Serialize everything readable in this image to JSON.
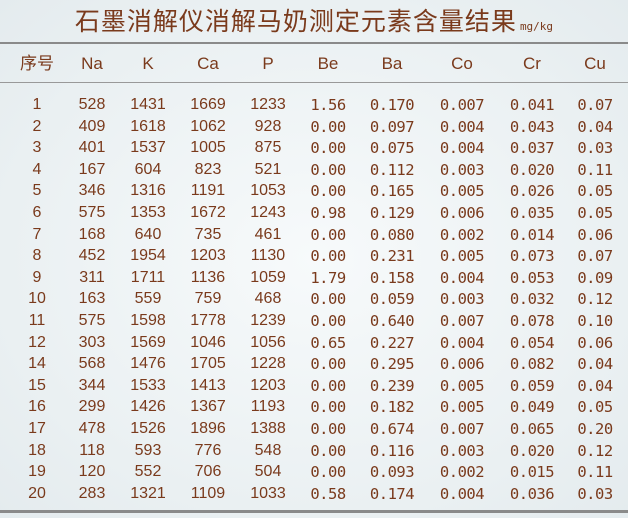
{
  "title": "石墨消解仪消解马奶测定元素含量结果",
  "unit": "mg/kg",
  "columns": [
    "序号",
    "Na",
    "K",
    "Ca",
    "P",
    "Be",
    "Ba",
    "Co",
    "Cr",
    "Cu"
  ],
  "rows": [
    [
      "1",
      "528",
      "1431",
      "1669",
      "1233",
      "1.56",
      "0.170",
      "0.007",
      "0.041",
      "0.07"
    ],
    [
      "2",
      "409",
      "1618",
      "1062",
      "928",
      "0.00",
      "0.097",
      "0.004",
      "0.043",
      "0.04"
    ],
    [
      "3",
      "401",
      "1537",
      "1005",
      "875",
      "0.00",
      "0.075",
      "0.004",
      "0.037",
      "0.03"
    ],
    [
      "4",
      "167",
      "604",
      "823",
      "521",
      "0.00",
      "0.112",
      "0.003",
      "0.020",
      "0.11"
    ],
    [
      "5",
      "346",
      "1316",
      "1191",
      "1053",
      "0.00",
      "0.165",
      "0.005",
      "0.026",
      "0.05"
    ],
    [
      "6",
      "575",
      "1353",
      "1672",
      "1243",
      "0.98",
      "0.129",
      "0.006",
      "0.035",
      "0.05"
    ],
    [
      "7",
      "168",
      "640",
      "735",
      "461",
      "0.00",
      "0.080",
      "0.002",
      "0.014",
      "0.06"
    ],
    [
      "8",
      "452",
      "1954",
      "1203",
      "1130",
      "0.00",
      "0.231",
      "0.005",
      "0.073",
      "0.07"
    ],
    [
      "9",
      "311",
      "1711",
      "1136",
      "1059",
      "1.79",
      "0.158",
      "0.004",
      "0.053",
      "0.09"
    ],
    [
      "10",
      "163",
      "559",
      "759",
      "468",
      "0.00",
      "0.059",
      "0.003",
      "0.032",
      "0.12"
    ],
    [
      "11",
      "575",
      "1598",
      "1778",
      "1239",
      "0.00",
      "0.640",
      "0.007",
      "0.078",
      "0.10"
    ],
    [
      "12",
      "303",
      "1569",
      "1046",
      "1056",
      "0.65",
      "0.227",
      "0.004",
      "0.054",
      "0.06"
    ],
    [
      "14",
      "568",
      "1476",
      "1705",
      "1228",
      "0.00",
      "0.295",
      "0.006",
      "0.082",
      "0.04"
    ],
    [
      "15",
      "344",
      "1533",
      "1413",
      "1203",
      "0.00",
      "0.239",
      "0.005",
      "0.059",
      "0.04"
    ],
    [
      "16",
      "299",
      "1426",
      "1367",
      "1193",
      "0.00",
      "0.182",
      "0.005",
      "0.049",
      "0.05"
    ],
    [
      "17",
      "478",
      "1526",
      "1896",
      "1388",
      "0.00",
      "0.674",
      "0.007",
      "0.065",
      "0.20"
    ],
    [
      "18",
      "118",
      "593",
      "776",
      "548",
      "0.00",
      "0.116",
      "0.003",
      "0.020",
      "0.12"
    ],
    [
      "19",
      "120",
      "552",
      "706",
      "504",
      "0.00",
      "0.093",
      "0.002",
      "0.015",
      "0.11"
    ],
    [
      "20",
      "283",
      "1321",
      "1109",
      "1033",
      "0.58",
      "0.174",
      "0.004",
      "0.036",
      "0.03"
    ]
  ],
  "colors": {
    "text": "#7a3a1c",
    "rule": "#8a8a8a",
    "background": "#eef3f5"
  }
}
